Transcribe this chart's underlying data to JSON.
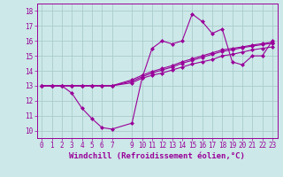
{
  "xlabel": "Windchill (Refroidissement éolien,°C)",
  "background_color": "#cce8e8",
  "grid_color": "#aacccc",
  "line_color": "#990099",
  "xlim": [
    -0.5,
    23.5
  ],
  "ylim": [
    9.5,
    18.5
  ],
  "xticks": [
    0,
    1,
    2,
    3,
    4,
    5,
    6,
    7,
    9,
    10,
    11,
    12,
    13,
    14,
    15,
    16,
    17,
    18,
    19,
    20,
    21,
    22,
    23
  ],
  "yticks": [
    10,
    11,
    12,
    13,
    14,
    15,
    16,
    17,
    18
  ],
  "line1_x": [
    0,
    1,
    2,
    3,
    4,
    5,
    6,
    7,
    9,
    10,
    11,
    12,
    13,
    14,
    15,
    16,
    17,
    18,
    19,
    20,
    21,
    22,
    23
  ],
  "line1_y": [
    13.0,
    13.0,
    13.0,
    12.5,
    11.5,
    10.8,
    10.2,
    10.1,
    10.5,
    13.5,
    15.5,
    16.0,
    15.8,
    16.0,
    17.8,
    17.3,
    16.5,
    16.8,
    14.6,
    14.4,
    15.0,
    15.0,
    16.0
  ],
  "line2_x": [
    0,
    1,
    2,
    3,
    4,
    5,
    6,
    7,
    9,
    10,
    11,
    12,
    13,
    14,
    15,
    16,
    17,
    18,
    19,
    20,
    21,
    22,
    23
  ],
  "line2_y": [
    13.0,
    13.0,
    13.0,
    13.0,
    13.0,
    13.0,
    13.0,
    13.0,
    13.2,
    13.5,
    13.7,
    13.85,
    14.05,
    14.25,
    14.45,
    14.6,
    14.75,
    15.0,
    15.1,
    15.25,
    15.4,
    15.5,
    15.6
  ],
  "line3_x": [
    0,
    1,
    2,
    3,
    4,
    5,
    6,
    7,
    9,
    10,
    11,
    12,
    13,
    14,
    15,
    16,
    17,
    18,
    19,
    20,
    21,
    22,
    23
  ],
  "line3_y": [
    13.0,
    13.0,
    13.0,
    13.0,
    13.0,
    13.0,
    13.0,
    13.0,
    13.3,
    13.6,
    13.85,
    14.05,
    14.25,
    14.5,
    14.7,
    14.9,
    15.1,
    15.3,
    15.4,
    15.55,
    15.65,
    15.75,
    15.85
  ],
  "line4_x": [
    0,
    1,
    2,
    3,
    4,
    5,
    6,
    7,
    9,
    10,
    11,
    12,
    13,
    14,
    15,
    16,
    17,
    18,
    19,
    20,
    21,
    22,
    23
  ],
  "line4_y": [
    13.0,
    13.0,
    13.0,
    13.0,
    13.0,
    13.0,
    13.0,
    13.0,
    13.4,
    13.7,
    13.95,
    14.15,
    14.35,
    14.6,
    14.8,
    15.0,
    15.2,
    15.4,
    15.5,
    15.6,
    15.72,
    15.82,
    15.92
  ],
  "marker": "D",
  "markersize": 2,
  "linewidth": 0.8,
  "tick_fontsize": 5.5,
  "label_fontsize": 6.5
}
